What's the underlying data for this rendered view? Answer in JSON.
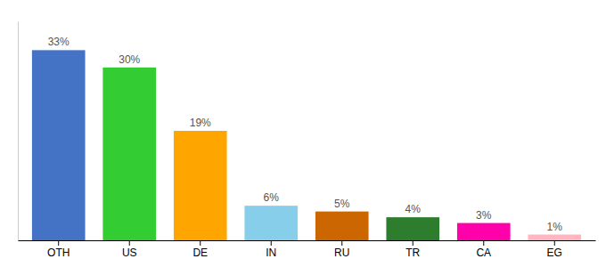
{
  "chart_data": {
    "type": "bar",
    "categories": [
      "OTH",
      "US",
      "DE",
      "IN",
      "RU",
      "TR",
      "CA",
      "EG"
    ],
    "values": [
      33,
      30,
      19,
      6,
      5,
      4,
      3,
      1
    ],
    "value_labels": [
      "33%",
      "30%",
      "19%",
      "6%",
      "5%",
      "4%",
      "3%",
      "1%"
    ],
    "colors": [
      "#4472C4",
      "#33CC33",
      "#FFA500",
      "#87CEEB",
      "#CC6600",
      "#2E7D2E",
      "#FF00AA",
      "#FFB6C1"
    ],
    "ylim": [
      0,
      38
    ],
    "data_labels": true,
    "tick_labels": "x",
    "grid": false
  }
}
